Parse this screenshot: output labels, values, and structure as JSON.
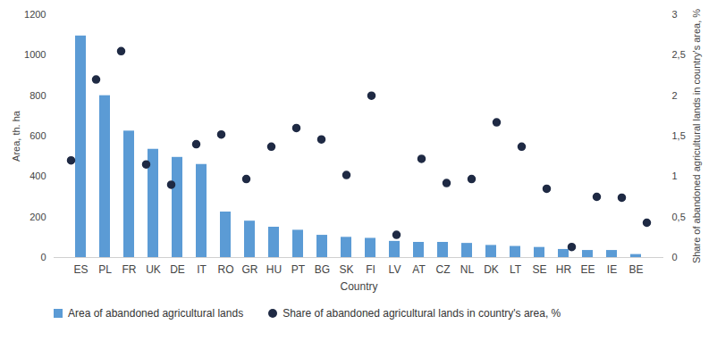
{
  "chart_data": {
    "type": "bar",
    "x_label": "Country",
    "y_label": "Area, th. ha",
    "y2_label": "Share of abandoned agricultural lands in country's area, %",
    "categories": [
      "ES",
      "PL",
      "FR",
      "UK",
      "DE",
      "IT",
      "RO",
      "GR",
      "HU",
      "PT",
      "BG",
      "SK",
      "FI",
      "LV",
      "AT",
      "CZ",
      "NL",
      "DK",
      "LT",
      "SE",
      "HR",
      "EE",
      "IE",
      "BE"
    ],
    "series": [
      {
        "name": "Area of abandoned agricultural lands",
        "type": "bar",
        "color": "#5b9bd5",
        "values": [
          1095,
          800,
          625,
          535,
          495,
          460,
          225,
          180,
          150,
          135,
          110,
          100,
          95,
          80,
          75,
          75,
          70,
          60,
          55,
          50,
          40,
          35,
          35,
          15
        ]
      },
      {
        "name": "Share of abandoned agricultural lands in country's area, %",
        "type": "scatter",
        "axis": "y2",
        "color": "#1f2a44",
        "marker": "circle",
        "values": [
          1.2,
          2.2,
          2.55,
          1.15,
          0.9,
          1.4,
          1.52,
          0.97,
          1.37,
          1.6,
          1.46,
          1.02,
          2.0,
          0.28,
          1.22,
          0.92,
          0.97,
          1.67,
          1.37,
          0.85,
          0.13,
          0.75,
          0.74,
          0.43
        ]
      }
    ],
    "ylim": [
      0,
      1200
    ],
    "yticks": [
      0,
      200,
      400,
      600,
      800,
      1000,
      1200
    ],
    "y2lim": [
      0,
      3
    ],
    "y2ticks": [
      0,
      {
        "value": 0.5,
        "label": "0,5"
      },
      1,
      {
        "value": 1.5,
        "label": "1,5"
      },
      2,
      {
        "value": 2.5,
        "label": "2,5"
      },
      3
    ],
    "grid": false,
    "legend": "bottom"
  }
}
